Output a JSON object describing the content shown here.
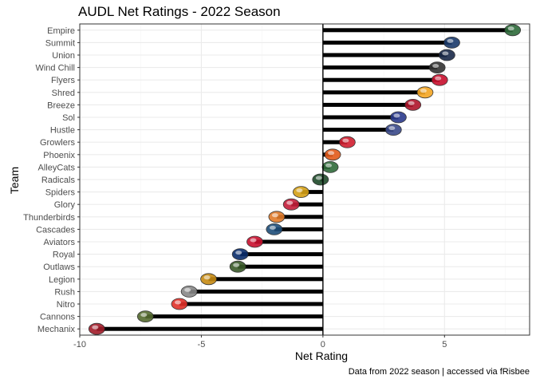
{
  "chart_data": {
    "type": "bar",
    "orientation": "horizontal",
    "title": "AUDL Net Ratings - 2022 Season",
    "xlabel": "Net Rating",
    "ylabel": "Team",
    "caption": "Data from 2022 season | accessed via fRisbee",
    "xlim": [
      -10,
      8.5
    ],
    "xticks": [
      -10,
      -5,
      0,
      5
    ],
    "grid": true,
    "categories": [
      "Empire",
      "Summit",
      "Union",
      "Wind Chill",
      "Flyers",
      "Shred",
      "Breeze",
      "Sol",
      "Hustle",
      "Growlers",
      "Phoenix",
      "AlleyCats",
      "Radicals",
      "Spiders",
      "Glory",
      "Thunderbirds",
      "Cascades",
      "Aviators",
      "Royal",
      "Outlaws",
      "Legion",
      "Rush",
      "Nitro",
      "Cannons",
      "Mechanix"
    ],
    "values": [
      7.8,
      5.3,
      5.1,
      4.7,
      4.8,
      4.2,
      3.7,
      3.1,
      2.9,
      1.0,
      0.4,
      0.3,
      -0.1,
      -0.9,
      -1.3,
      -1.9,
      -2.0,
      -2.8,
      -3.4,
      -3.5,
      -4.7,
      -5.5,
      -5.9,
      -7.3,
      -9.3
    ],
    "colors": {
      "bar": "#000000",
      "panel_border": "#333333",
      "grid_major": "#ebebeb",
      "grid_minor": "#f5f5f5",
      "zero_line": "#000000",
      "logos": [
        "#2e6b3a",
        "#1b3a6b",
        "#1a2a4a",
        "#333333",
        "#c8102e",
        "#f5a623",
        "#b0152b",
        "#2b3a8c",
        "#3a4a8a",
        "#d11f2f",
        "#e35a1a",
        "#2f6b3a",
        "#1f4a2a",
        "#d4a017",
        "#c41e3a",
        "#e07b2a",
        "#1f4e79",
        "#c8102e",
        "#0b2d6b",
        "#3a5a2a",
        "#c68a12",
        "#888888",
        "#e0312a",
        "#556b2f",
        "#a11c2a"
      ]
    }
  }
}
